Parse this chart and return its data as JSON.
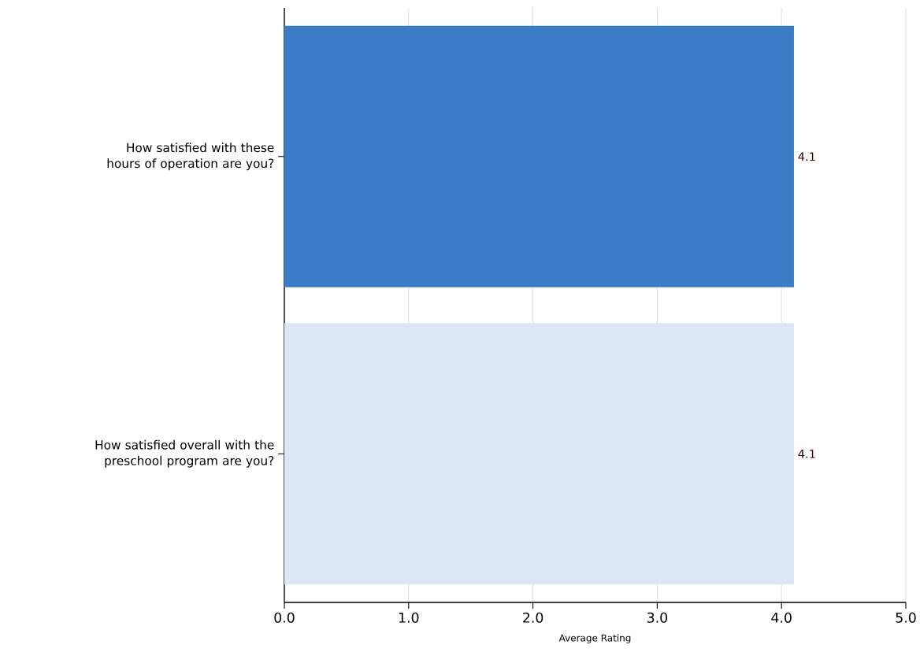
{
  "chart_data": {
    "type": "bar",
    "orientation": "horizontal",
    "xlabel": "Average Rating",
    "categories": [
      "How satisfied with these hours of operation are you?",
      "How satisfied overall with the preschool program are you?"
    ],
    "values": [
      4.1,
      4.1
    ],
    "colors": [
      "#3b7cc7",
      "#dce6f5"
    ],
    "xlim": [
      0,
      5
    ],
    "xticks": [
      {
        "value": 0,
        "label": "0.0"
      },
      {
        "value": 1,
        "label": "1.0"
      },
      {
        "value": 2,
        "label": "2.0"
      },
      {
        "value": 3,
        "label": "3.0"
      },
      {
        "value": 4,
        "label": "4.0"
      },
      {
        "value": 5,
        "label": "5.0"
      }
    ],
    "grid": "x",
    "data_labels": true
  }
}
